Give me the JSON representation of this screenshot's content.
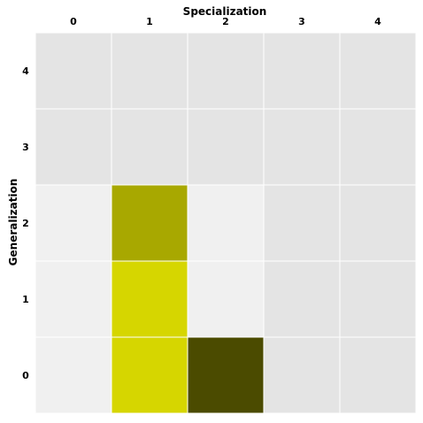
{
  "chart_data": {
    "type": "heatmap",
    "xlabel": "Specialization",
    "ylabel": "Generalization",
    "x_categories": [
      "0",
      "1",
      "2",
      "3",
      "4"
    ],
    "y_categories": [
      "0",
      "1",
      "2",
      "3",
      "4"
    ],
    "x_axis_position": "top",
    "y_order": "ascending-bottom-to-top",
    "grid": true,
    "grid_color": "#ffffff",
    "colors": {
      "empty_dark": "#e4e4e4",
      "empty_light": "#f0f0f0",
      "level_1": "#d6d600",
      "level_2": "#a8a800",
      "level_3": "#4b4b00"
    },
    "cells": [
      [
        "empty_light",
        "level_1",
        "level_3",
        "empty_dark",
        "empty_dark"
      ],
      [
        "empty_light",
        "level_1",
        "empty_light",
        "empty_dark",
        "empty_dark"
      ],
      [
        "empty_light",
        "level_2",
        "empty_light",
        "empty_dark",
        "empty_dark"
      ],
      [
        "empty_dark",
        "empty_dark",
        "empty_dark",
        "empty_dark",
        "empty_dark"
      ],
      [
        "empty_dark",
        "empty_dark",
        "empty_dark",
        "empty_dark",
        "empty_dark"
      ]
    ]
  }
}
